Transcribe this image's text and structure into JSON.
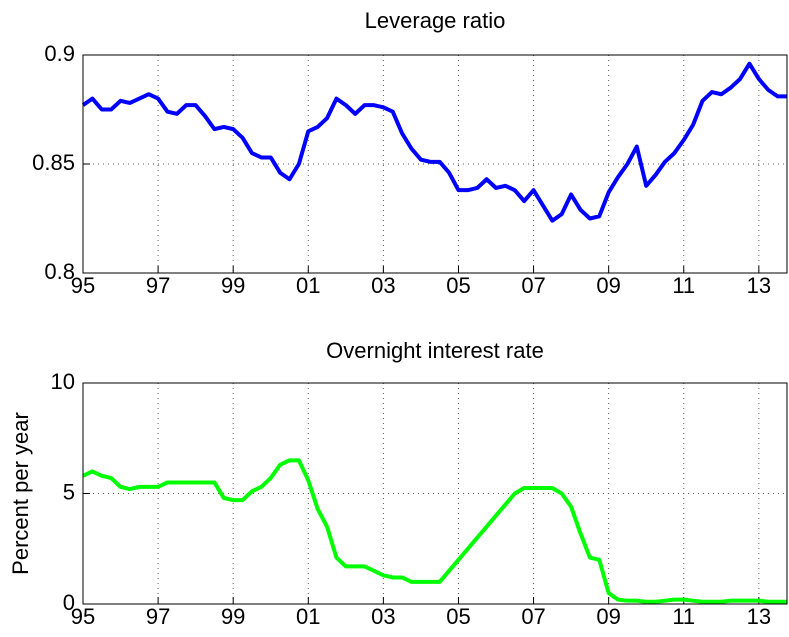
{
  "chart_data": [
    {
      "type": "line",
      "title": "Leverage ratio",
      "color": "#0000ff",
      "grid": true,
      "xlim": [
        1995,
        2013.75
      ],
      "ylim": [
        0.8,
        0.9
      ],
      "yticks": [
        0.8,
        0.85,
        0.9
      ],
      "xticks": [
        {
          "value": 1995,
          "label": "95"
        },
        {
          "value": 1997,
          "label": "97"
        },
        {
          "value": 1999,
          "label": "99"
        },
        {
          "value": 2001,
          "label": "01"
        },
        {
          "value": 2003,
          "label": "03"
        },
        {
          "value": 2005,
          "label": "05"
        },
        {
          "value": 2007,
          "label": "07"
        },
        {
          "value": 2009,
          "label": "09"
        },
        {
          "value": 2011,
          "label": "11"
        },
        {
          "value": 2013,
          "label": "13"
        }
      ],
      "x": [
        1995,
        1995.25,
        1995.5,
        1995.75,
        1996,
        1996.25,
        1996.5,
        1996.75,
        1997,
        1997.25,
        1997.5,
        1997.75,
        1998,
        1998.25,
        1998.5,
        1998.75,
        1999,
        1999.25,
        1999.5,
        1999.75,
        2000,
        2000.25,
        2000.5,
        2000.75,
        2001,
        2001.25,
        2001.5,
        2001.75,
        2002,
        2002.25,
        2002.5,
        2002.75,
        2003,
        2003.25,
        2003.5,
        2003.75,
        2004,
        2004.25,
        2004.5,
        2004.75,
        2005,
        2005.25,
        2005.5,
        2005.75,
        2006,
        2006.25,
        2006.5,
        2006.75,
        2007,
        2007.25,
        2007.5,
        2007.75,
        2008,
        2008.25,
        2008.5,
        2008.75,
        2009,
        2009.25,
        2009.5,
        2009.75,
        2010,
        2010.25,
        2010.5,
        2010.75,
        2011,
        2011.25,
        2011.5,
        2011.75,
        2012,
        2012.25,
        2012.5,
        2012.75,
        2013,
        2013.25,
        2013.5,
        2013.75
      ],
      "values": [
        0.877,
        0.88,
        0.875,
        0.875,
        0.879,
        0.878,
        0.88,
        0.882,
        0.88,
        0.874,
        0.873,
        0.877,
        0.877,
        0.872,
        0.866,
        0.867,
        0.866,
        0.862,
        0.855,
        0.853,
        0.853,
        0.846,
        0.843,
        0.85,
        0.865,
        0.867,
        0.871,
        0.88,
        0.877,
        0.873,
        0.877,
        0.877,
        0.876,
        0.874,
        0.864,
        0.857,
        0.852,
        0.851,
        0.851,
        0.846,
        0.838,
        0.838,
        0.839,
        0.843,
        0.839,
        0.84,
        0.838,
        0.833,
        0.838,
        0.831,
        0.824,
        0.827,
        0.836,
        0.829,
        0.825,
        0.826,
        0.837,
        0.844,
        0.85,
        0.858,
        0.84,
        0.845,
        0.851,
        0.855,
        0.861,
        0.868,
        0.879,
        0.883,
        0.882,
        0.885,
        0.889,
        0.896,
        0.889,
        0.884,
        0.881,
        0.881
      ]
    },
    {
      "type": "line",
      "title": "Overnight interest rate",
      "ylabel": "Percent per year",
      "color": "#00ff00",
      "grid": true,
      "xlim": [
        1995,
        2013.75
      ],
      "ylim": [
        0,
        10
      ],
      "yticks": [
        0,
        5,
        10
      ],
      "xticks": [
        {
          "value": 1995,
          "label": "95"
        },
        {
          "value": 1997,
          "label": "97"
        },
        {
          "value": 1999,
          "label": "99"
        },
        {
          "value": 2001,
          "label": "01"
        },
        {
          "value": 2003,
          "label": "03"
        },
        {
          "value": 2005,
          "label": "05"
        },
        {
          "value": 2007,
          "label": "07"
        },
        {
          "value": 2009,
          "label": "09"
        },
        {
          "value": 2011,
          "label": "11"
        },
        {
          "value": 2013,
          "label": "13"
        }
      ],
      "x": [
        1995,
        1995.25,
        1995.5,
        1995.75,
        1996,
        1996.25,
        1996.5,
        1996.75,
        1997,
        1997.25,
        1997.5,
        1997.75,
        1998,
        1998.25,
        1998.5,
        1998.75,
        1999,
        1999.25,
        1999.5,
        1999.75,
        2000,
        2000.25,
        2000.5,
        2000.75,
        2001,
        2001.25,
        2001.5,
        2001.75,
        2002,
        2002.25,
        2002.5,
        2002.75,
        2003,
        2003.25,
        2003.5,
        2003.75,
        2004,
        2004.25,
        2004.5,
        2004.75,
        2005,
        2005.25,
        2005.5,
        2005.75,
        2006,
        2006.25,
        2006.5,
        2006.75,
        2007,
        2007.25,
        2007.5,
        2007.75,
        2008,
        2008.25,
        2008.5,
        2008.75,
        2009,
        2009.25,
        2009.5,
        2009.75,
        2010,
        2010.25,
        2010.5,
        2010.75,
        2011,
        2011.25,
        2011.5,
        2011.75,
        2012,
        2012.25,
        2012.5,
        2012.75,
        2013,
        2013.25,
        2013.5,
        2013.75
      ],
      "values": [
        5.8,
        6.0,
        5.8,
        5.7,
        5.3,
        5.2,
        5.3,
        5.3,
        5.3,
        5.5,
        5.5,
        5.5,
        5.5,
        5.5,
        5.5,
        4.8,
        4.7,
        4.7,
        5.1,
        5.3,
        5.7,
        6.3,
        6.5,
        6.5,
        5.6,
        4.3,
        3.5,
        2.1,
        1.7,
        1.7,
        1.7,
        1.5,
        1.3,
        1.2,
        1.2,
        1.0,
        1.0,
        1.0,
        1.0,
        1.5,
        2.0,
        2.5,
        3.0,
        3.5,
        4.0,
        4.5,
        5.0,
        5.25,
        5.25,
        5.25,
        5.25,
        5.0,
        4.4,
        3.2,
        2.1,
        2.0,
        0.5,
        0.2,
        0.15,
        0.15,
        0.1,
        0.1,
        0.15,
        0.2,
        0.2,
        0.15,
        0.1,
        0.1,
        0.1,
        0.15,
        0.15,
        0.15,
        0.15,
        0.1,
        0.1,
        0.1
      ]
    }
  ]
}
